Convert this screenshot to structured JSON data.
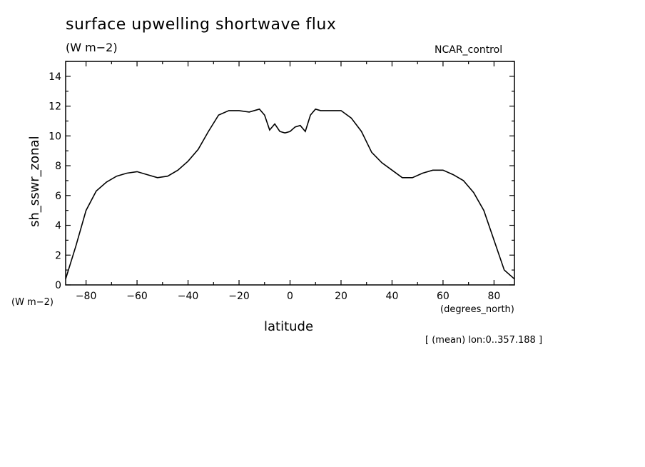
{
  "chart_data": {
    "type": "line",
    "title": "surface upwelling shortwave flux",
    "units": "(W m−2)",
    "dataset": "NCAR_control",
    "ylabel": "sh_sswr_zonal",
    "yunits": "(W m−2)",
    "xlabel": "latitude",
    "xunits": "(degrees_north)",
    "note": "[ (mean) lon:0..357.188 ]",
    "xlim": [
      -88,
      88
    ],
    "ylim": [
      0,
      15
    ],
    "xticks": [
      -80,
      -60,
      -40,
      -20,
      0,
      20,
      40,
      60,
      80
    ],
    "xtick_labels": [
      "−80",
      "−60",
      "−40",
      "−20",
      "0",
      "20",
      "40",
      "60",
      "80"
    ],
    "yticks": [
      0,
      2,
      4,
      6,
      8,
      10,
      12,
      14
    ],
    "ytick_labels": [
      "0",
      "2",
      "4",
      "6",
      "8",
      "10",
      "12",
      "14"
    ],
    "grid": false,
    "line_color": "#000000",
    "series": [
      {
        "x": [
          -88,
          -84,
          -80,
          -76,
          -72,
          -68,
          -64,
          -60,
          -56,
          -52,
          -48,
          -44,
          -40,
          -36,
          -32,
          -28,
          -24,
          -20,
          -16,
          -12,
          -10,
          -8,
          -6,
          -4,
          -2,
          0,
          2,
          4,
          -4.01,
          6,
          8,
          10,
          12,
          16,
          20,
          24,
          28,
          32,
          36,
          40,
          44,
          48,
          52,
          56,
          60,
          64,
          68,
          72,
          76,
          80,
          84,
          88
        ],
        "y": [
          0.4,
          2.6,
          5.0,
          6.3,
          6.9,
          7.3,
          7.5,
          7.6,
          7.4,
          7.2,
          7.3,
          7.7,
          8.3,
          9.1,
          10.3,
          11.4,
          11.7,
          11.7,
          11.6,
          11.8,
          11.4,
          10.4,
          10.8,
          10.3,
          10.2,
          10.3,
          10.6,
          10.7,
          10.2,
          10.3,
          11.4,
          11.8,
          11.7,
          11.7,
          11.7,
          11.2,
          10.3,
          8.9,
          8.2,
          7.7,
          7.2,
          7.2,
          7.5,
          7.7,
          7.7,
          7.4,
          7.0,
          6.2,
          5.0,
          3.0,
          1.0,
          0.4
        ]
      }
    ]
  }
}
